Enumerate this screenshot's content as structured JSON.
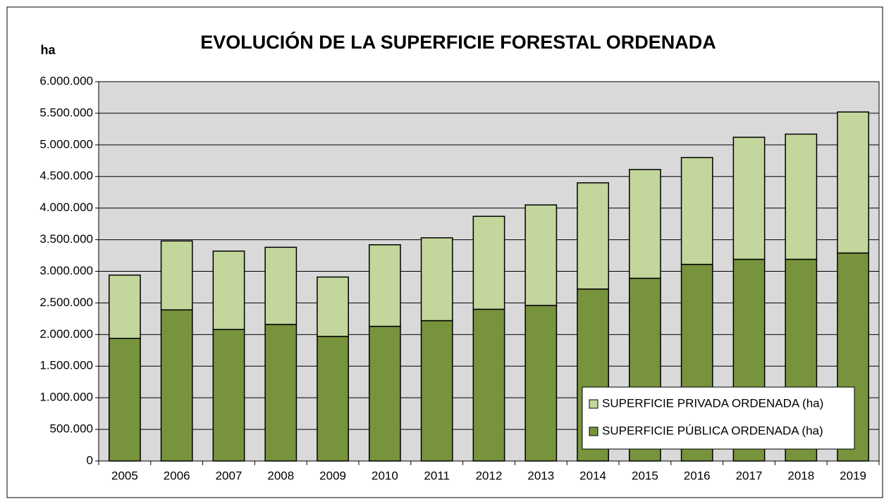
{
  "chart_data": {
    "type": "stacked_bar",
    "title": "EVOLUCIÓN DE LA SUPERFICIE FORESTAL ORDENADA",
    "y_label": "ha",
    "categories": [
      "2005",
      "2006",
      "2007",
      "2008",
      "2009",
      "2010",
      "2011",
      "2012",
      "2013",
      "2014",
      "2015",
      "2016",
      "2017",
      "2018",
      "2019"
    ],
    "series": [
      {
        "name": "SUPERFICIE PÚBLICA ORDENADA (ha)",
        "color": "#77933c",
        "values": [
          1940000,
          2390000,
          2080000,
          2160000,
          1970000,
          2130000,
          2220000,
          2400000,
          2460000,
          2720000,
          2890000,
          3110000,
          3190000,
          3190000,
          3290000
        ]
      },
      {
        "name": "SUPERFICIE PRIVADA ORDENADA (ha)",
        "color": "#c3d69b",
        "values": [
          1000000,
          1090000,
          1240000,
          1220000,
          940000,
          1290000,
          1310000,
          1470000,
          1590000,
          1680000,
          1720000,
          1690000,
          1930000,
          1980000,
          2230000
        ]
      }
    ],
    "ylim": [
      0,
      6000000
    ],
    "yticks": [
      0,
      {
        "value": 500000,
        "label": "500.000"
      },
      {
        "value": 1000000,
        "label": "1.000.000"
      },
      {
        "value": 1500000,
        "label": "1.500.000"
      },
      {
        "value": 2000000,
        "label": "2.000.000"
      },
      {
        "value": 2500000,
        "label": "2.500.000"
      },
      {
        "value": 3000000,
        "label": "3.000.000"
      },
      {
        "value": 3500000,
        "label": "3.500.000"
      },
      {
        "value": 4000000,
        "label": "4.000.000"
      },
      {
        "value": 4500000,
        "label": "4.500.000"
      },
      {
        "value": 5000000,
        "label": "5.000.000"
      },
      {
        "value": 5500000,
        "label": "5.500.000"
      },
      {
        "value": 6000000,
        "label": "6.000.000"
      }
    ],
    "grid": true,
    "legend": "lower right",
    "plot_background": "#d9d9d9"
  }
}
